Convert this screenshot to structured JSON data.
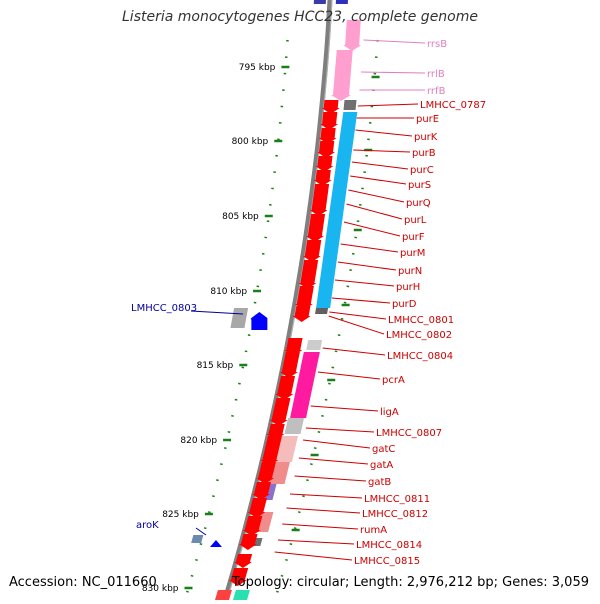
{
  "title": "Listeria monocytogenes HCC23, complete genome",
  "footer": {
    "accession": "Accession: NC_011660",
    "topology": "Topology: circular; Length: 2,976,212 bp; Genes: 3,059"
  },
  "colors": {
    "backbone": "#7f7f7f",
    "tick": "#1a7f1a",
    "gene_red": "#ff0000",
    "label_red": "#cc0000",
    "label_pink": "#e080c0",
    "label_blue": "#00009c",
    "rrna_pink": "#ff9fcf",
    "operon_cyan": "#19b5f0",
    "operon_magenta": "#ff1aa0",
    "operon_salmon": "#f08c8c"
  },
  "ticks": [
    {
      "label": "795 kbp"
    },
    {
      "label": "800 kbp"
    },
    {
      "label": "805 kbp"
    },
    {
      "label": "810 kbp"
    },
    {
      "label": "815 kbp"
    },
    {
      "label": "820 kbp"
    },
    {
      "label": "825 kbp"
    },
    {
      "label": "830 kbp"
    }
  ],
  "genes": [
    {
      "name": "rrsB",
      "color": "pink"
    },
    {
      "name": "rrlB",
      "color": "pink"
    },
    {
      "name": "rrfB",
      "color": "pink"
    },
    {
      "name": "LMHCC_0787",
      "color": "red"
    },
    {
      "name": "purE",
      "color": "red"
    },
    {
      "name": "purK",
      "color": "red"
    },
    {
      "name": "purB",
      "color": "red"
    },
    {
      "name": "purC",
      "color": "red"
    },
    {
      "name": "purS",
      "color": "red"
    },
    {
      "name": "purQ",
      "color": "red"
    },
    {
      "name": "purL",
      "color": "red"
    },
    {
      "name": "purF",
      "color": "red"
    },
    {
      "name": "purM",
      "color": "red"
    },
    {
      "name": "purN",
      "color": "red"
    },
    {
      "name": "purH",
      "color": "red"
    },
    {
      "name": "purD",
      "color": "red"
    },
    {
      "name": "LMHCC_0801",
      "color": "red"
    },
    {
      "name": "LMHCC_0802",
      "color": "red"
    },
    {
      "name": "LMHCC_0804",
      "color": "red"
    },
    {
      "name": "pcrA",
      "color": "red"
    },
    {
      "name": "ligA",
      "color": "red"
    },
    {
      "name": "LMHCC_0807",
      "color": "red"
    },
    {
      "name": "gatC",
      "color": "red"
    },
    {
      "name": "gatA",
      "color": "red"
    },
    {
      "name": "gatB",
      "color": "red"
    },
    {
      "name": "LMHCC_0811",
      "color": "red"
    },
    {
      "name": "LMHCC_0812",
      "color": "red"
    },
    {
      "name": "rumA",
      "color": "red"
    },
    {
      "name": "LMHCC_0814",
      "color": "red"
    },
    {
      "name": "LMHCC_0815",
      "color": "red"
    },
    {
      "name": "LMHCC_0803",
      "color": "blue"
    },
    {
      "name": "aroK",
      "color": "blue"
    }
  ]
}
